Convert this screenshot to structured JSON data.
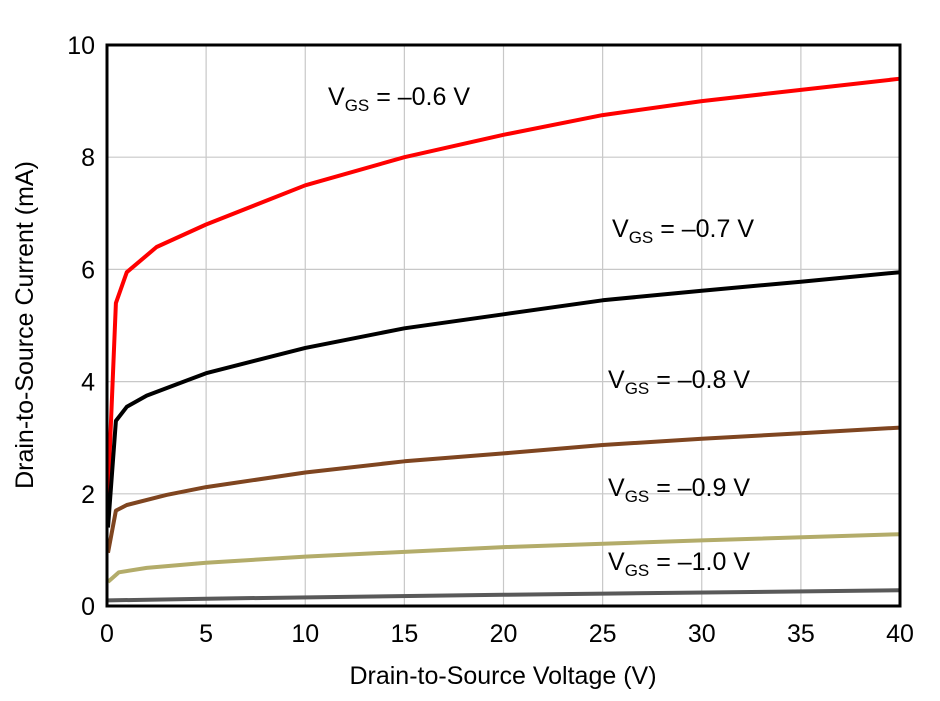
{
  "chart_data": {
    "type": "line",
    "title": "",
    "xlabel": "Drain-to-Source Voltage (V)",
    "ylabel": "Drain-to-Source Current (mA)",
    "xlim": [
      0,
      40
    ],
    "ylim": [
      0,
      10
    ],
    "xticks": [
      0,
      5,
      10,
      15,
      20,
      25,
      30,
      35,
      40
    ],
    "yticks": [
      0,
      2,
      4,
      6,
      8,
      10
    ],
    "grid": true,
    "series": [
      {
        "name": "V_GS = –0.6 V",
        "label_main": "V",
        "label_sub": "GS",
        "label_rest": " = –0.6 V",
        "color": "#ff0000",
        "x": [
          0.05,
          0.45,
          1,
          2.5,
          5,
          10,
          15,
          20,
          25,
          30,
          35,
          40
        ],
        "y": [
          2.0,
          5.4,
          5.95,
          6.4,
          6.8,
          7.5,
          8.0,
          8.4,
          8.75,
          9.0,
          9.2,
          9.4
        ]
      },
      {
        "name": "V_GS = –0.7 V",
        "label_main": "V",
        "label_sub": "GS",
        "label_rest": " = –0.7 V",
        "color": "#000000",
        "x": [
          0.05,
          0.45,
          1,
          2,
          5,
          10,
          15,
          20,
          25,
          30,
          35,
          40
        ],
        "y": [
          1.4,
          3.3,
          3.55,
          3.75,
          4.15,
          4.6,
          4.95,
          5.2,
          5.45,
          5.62,
          5.78,
          5.95
        ]
      },
      {
        "name": "V_GS = –0.8 V",
        "label_main": "V",
        "label_sub": "GS",
        "label_rest": " = –0.8 V",
        "color": "#7f4520",
        "x": [
          0.05,
          0.45,
          1,
          3,
          5,
          10,
          15,
          20,
          25,
          30,
          35,
          40
        ],
        "y": [
          0.95,
          1.7,
          1.8,
          1.98,
          2.12,
          2.38,
          2.58,
          2.72,
          2.87,
          2.98,
          3.08,
          3.18
        ]
      },
      {
        "name": "V_GS = –0.9 V",
        "label_main": "V",
        "label_sub": "GS",
        "label_rest": " = –0.9 V",
        "color": "#b3ac6a",
        "x": [
          0.05,
          0.6,
          2,
          5,
          10,
          20,
          30,
          40
        ],
        "y": [
          0.43,
          0.6,
          0.68,
          0.77,
          0.88,
          1.05,
          1.17,
          1.28
        ]
      },
      {
        "name": "V_GS = –1.0 V",
        "label_main": "V",
        "label_sub": "GS",
        "label_rest": " = –1.0 V",
        "color": "#595959",
        "x": [
          0.05,
          5,
          20,
          40
        ],
        "y": [
          0.1,
          0.13,
          0.2,
          0.28
        ]
      }
    ]
  }
}
